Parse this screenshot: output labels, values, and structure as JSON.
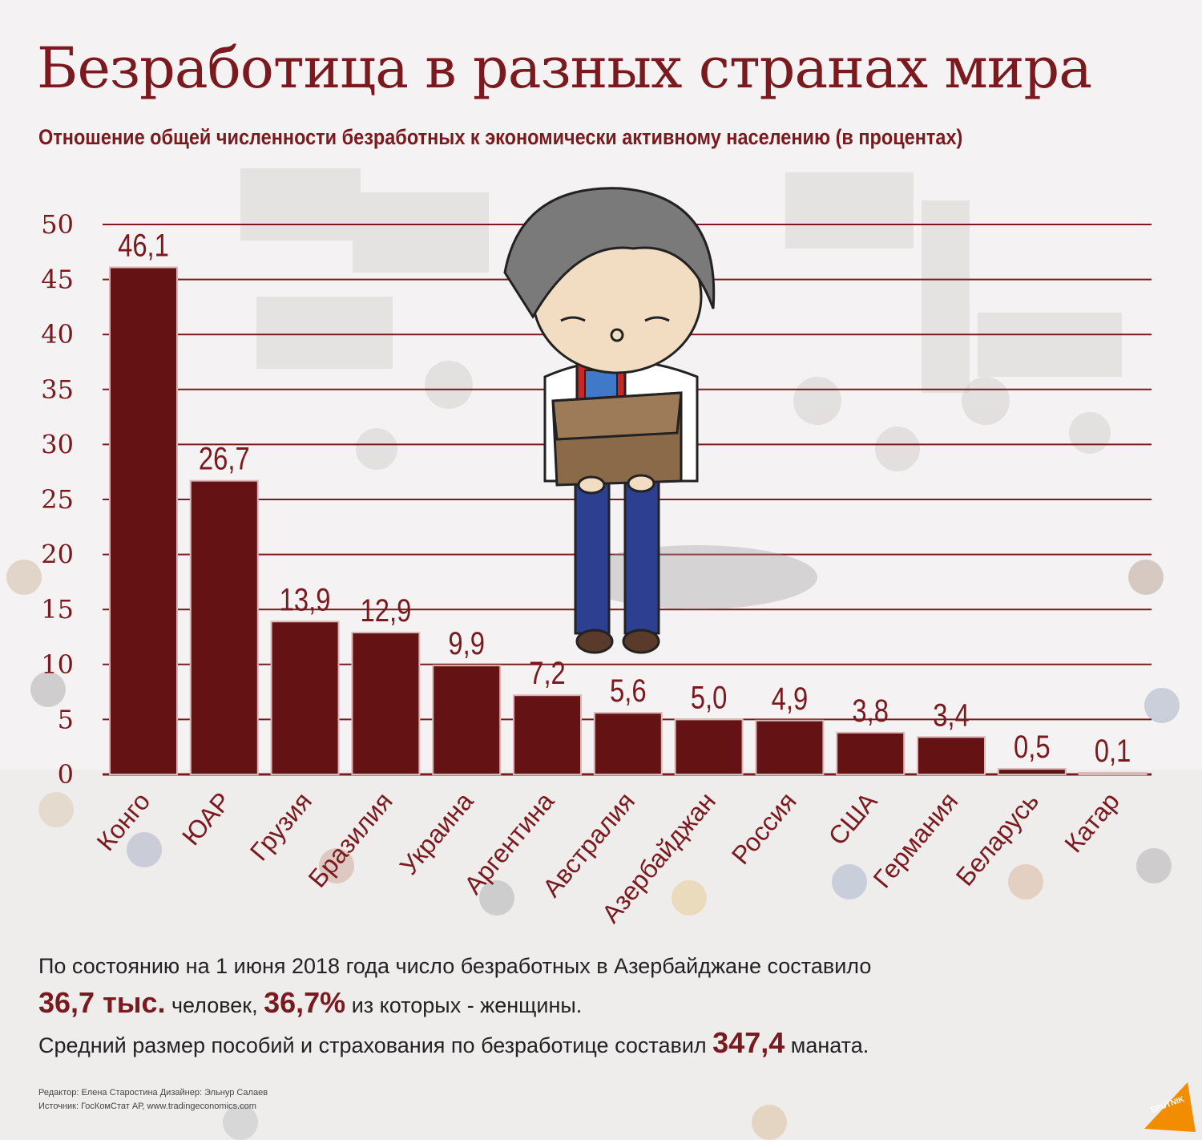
{
  "title": "Безработица в разных странах мира",
  "subtitle": "Отношение общей численности безработных к экономически активному населению (в процентах)",
  "chart_data": {
    "type": "bar",
    "categories": [
      "Конго",
      "ЮАР",
      "Грузия",
      "Бразилия",
      "Украина",
      "Аргентина",
      "Австралия",
      "Азербайджан",
      "Россия",
      "США",
      "Германия",
      "Беларусь",
      "Катар"
    ],
    "values": [
      46.1,
      26.7,
      13.9,
      12.9,
      9.9,
      7.2,
      5.6,
      5.0,
      4.9,
      3.8,
      3.4,
      0.5,
      0.1
    ],
    "value_labels": [
      "46,1",
      "26,7",
      "13,9",
      "12,9",
      "9,9",
      "7,2",
      "5,6",
      "5,0",
      "4,9",
      "3,8",
      "3,4",
      "0,5",
      "0,1"
    ],
    "yticks": [
      "0",
      "5",
      "10",
      "15",
      "20",
      "25",
      "30",
      "35",
      "40",
      "45",
      "50"
    ],
    "ylim": [
      0,
      50
    ],
    "grid": true,
    "bar_color": "#651215",
    "grid_color": "#7a1a1e"
  },
  "note": {
    "line1": "По состоянию на 1 июня 2018 года число безработных в Азербайджане составило",
    "hl1": "36,7 тыс.",
    "mid1": " человек, ",
    "hl2": "36,7%",
    "end1": " из которых - женщины.",
    "line3": "Средний размер пособий и страхования по безработице составил ",
    "hl3": "347,4",
    "end3": " маната."
  },
  "credits": {
    "editor": "Редактор: Елена Старостина  Дизайнер: Эльнур Салаев",
    "source": "Источник: ГосКомСтат АР, www.tradingeconomics.com"
  },
  "logo": "SPUTNIK",
  "colors": {
    "accent": "#7a1a1e",
    "background": "#f4f2f2"
  }
}
